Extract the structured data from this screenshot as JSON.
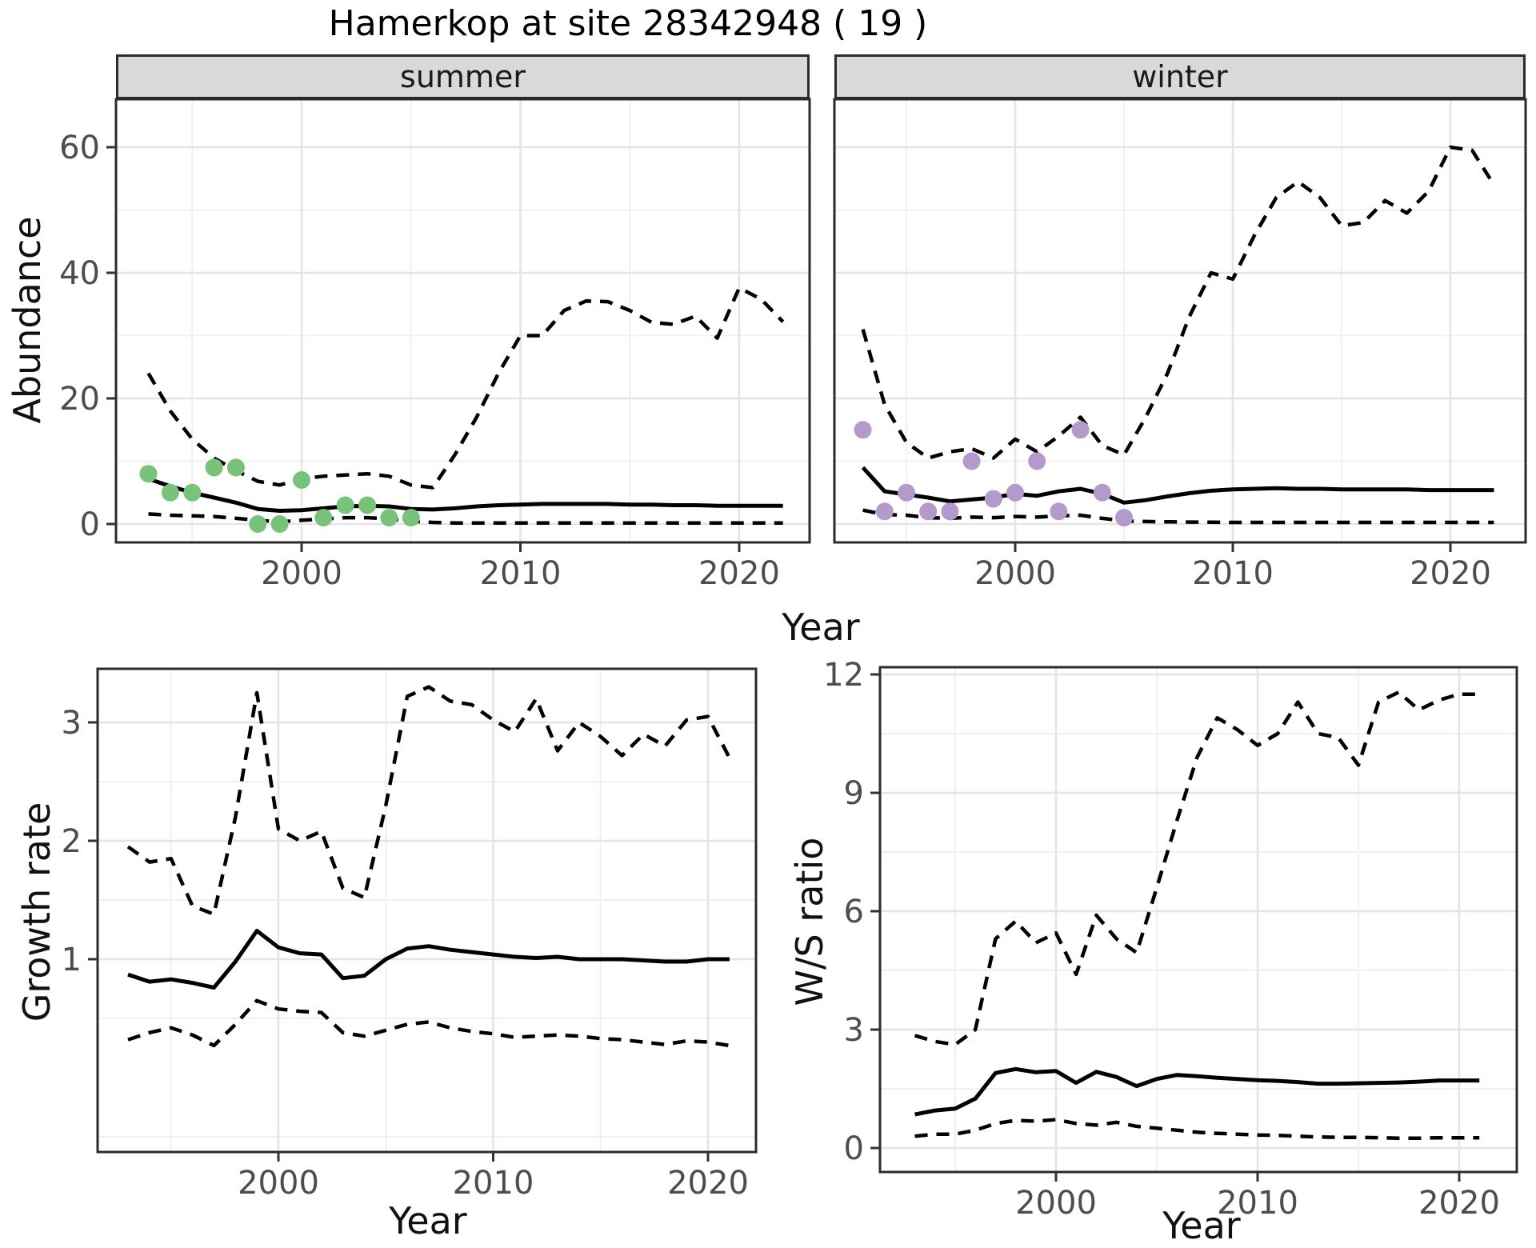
{
  "figure": {
    "title": "Hamerkop at site 28342948 ( 19 )"
  },
  "colors": {
    "summer_points": "#77c379",
    "winter_points": "#b499cb",
    "line": "#000000",
    "strip_bg": "#d9d9d9",
    "panel_border": "#2b2b2b",
    "grid_major": "#e4e4e4",
    "grid_minor": "#f0f0f0",
    "tick_label": "#4d4d4d"
  },
  "chart_data": [
    {
      "id": "abundance-summer",
      "type": "line",
      "facet": "summer",
      "xlabel": "Year",
      "ylabel": "Abundance",
      "xlim": [
        1991.5,
        2023.2
      ],
      "ylim": [
        -3,
        68
      ],
      "xticks": [
        2000,
        2010,
        2020
      ],
      "xminor": [
        1995,
        2005,
        2015
      ],
      "yticks": [
        0,
        20,
        40,
        60
      ],
      "yminor": [
        10,
        30,
        50
      ],
      "years": [
        1993,
        1994,
        1995,
        1996,
        1997,
        1998,
        1999,
        2000,
        2001,
        2002,
        2003,
        2004,
        2005,
        2006,
        2007,
        2008,
        2009,
        2010,
        2011,
        2012,
        2013,
        2014,
        2015,
        2016,
        2017,
        2018,
        2019,
        2020,
        2021,
        2022
      ],
      "series": [
        {
          "name": "median",
          "style": "solid",
          "values": [
            7.2,
            6.0,
            5.0,
            4.2,
            3.4,
            2.4,
            2.1,
            2.2,
            2.5,
            2.8,
            2.9,
            2.8,
            2.4,
            2.3,
            2.5,
            2.8,
            3.0,
            3.1,
            3.2,
            3.2,
            3.2,
            3.2,
            3.1,
            3.1,
            3.0,
            3.0,
            2.9,
            2.9,
            2.9,
            2.9
          ]
        },
        {
          "name": "upper_ci",
          "style": "dashed",
          "values": [
            24,
            18,
            13.5,
            10.5,
            8.5,
            6.8,
            6.2,
            7.2,
            7.6,
            7.8,
            8,
            7.6,
            6.2,
            5.8,
            11,
            17,
            24,
            30,
            30,
            34,
            35.5,
            35.4,
            34,
            32.1,
            31.8,
            33.1,
            29.6,
            37.6,
            35.8,
            32.2
          ]
        },
        {
          "name": "lower_ci",
          "style": "dashed",
          "values": [
            1.6,
            1.4,
            1.3,
            1.2,
            0.9,
            0.6,
            0.35,
            0.6,
            0.8,
            1.0,
            1.0,
            0.8,
            0.45,
            0.25,
            0.15,
            0.15,
            0.15,
            0.15,
            0.15,
            0.15,
            0.15,
            0.15,
            0.15,
            0.15,
            0.15,
            0.15,
            0.15,
            0.15,
            0.15,
            0.15
          ]
        }
      ],
      "points": {
        "color_key": "summer_points",
        "data": [
          [
            1993,
            8
          ],
          [
            1994,
            5
          ],
          [
            1995,
            5
          ],
          [
            1996,
            9
          ],
          [
            1997,
            9
          ],
          [
            1998,
            0
          ],
          [
            1999,
            0
          ],
          [
            2000,
            7
          ],
          [
            2001,
            1
          ],
          [
            2002,
            3
          ],
          [
            2003,
            3
          ],
          [
            2004,
            1
          ],
          [
            2005,
            1
          ]
        ]
      }
    },
    {
      "id": "abundance-winter",
      "type": "line",
      "facet": "winter",
      "xlabel": "Year",
      "ylabel": "Abundance",
      "xlim": [
        1991.7,
        2023.5
      ],
      "ylim": [
        -3,
        68
      ],
      "xticks": [
        2000,
        2010,
        2020
      ],
      "xminor": [
        1995,
        2005,
        2015
      ],
      "yticks": [
        0,
        20,
        40,
        60
      ],
      "yminor": [
        10,
        30,
        50
      ],
      "years": [
        1993,
        1994,
        1995,
        1996,
        1997,
        1998,
        1999,
        2000,
        2001,
        2002,
        2003,
        2004,
        2005,
        2006,
        2007,
        2008,
        2009,
        2010,
        2011,
        2012,
        2013,
        2014,
        2015,
        2016,
        2017,
        2018,
        2019,
        2020,
        2021,
        2022
      ],
      "series": [
        {
          "name": "median",
          "style": "solid",
          "values": [
            9.0,
            5.2,
            4.7,
            4.2,
            3.6,
            3.9,
            4.2,
            4.8,
            4.5,
            5.2,
            5.6,
            4.8,
            3.4,
            3.8,
            4.4,
            4.9,
            5.3,
            5.5,
            5.6,
            5.7,
            5.6,
            5.6,
            5.5,
            5.5,
            5.5,
            5.5,
            5.4,
            5.4,
            5.4,
            5.4
          ]
        },
        {
          "name": "upper_ci",
          "style": "dashed",
          "values": [
            31,
            19,
            13,
            10.5,
            11.5,
            12,
            10.5,
            13.5,
            11.5,
            14,
            17,
            12.5,
            11,
            17,
            24,
            33,
            40,
            39,
            46,
            52,
            54.5,
            52,
            47.5,
            48,
            51.5,
            49.5,
            53,
            60,
            59.5,
            54
          ]
        },
        {
          "name": "lower_ci",
          "style": "dashed",
          "values": [
            2.2,
            1.5,
            1.4,
            1.0,
            0.9,
            1.1,
            1.0,
            1.2,
            1.1,
            1.3,
            1.4,
            0.9,
            0.5,
            0.4,
            0.35,
            0.3,
            0.28,
            0.26,
            0.25,
            0.25,
            0.25,
            0.25,
            0.25,
            0.25,
            0.25,
            0.25,
            0.25,
            0.25,
            0.25,
            0.25
          ]
        }
      ],
      "points": {
        "color_key": "winter_points",
        "data": [
          [
            1993,
            15
          ],
          [
            1994,
            2
          ],
          [
            1995,
            5
          ],
          [
            1996,
            2
          ],
          [
            1997,
            2
          ],
          [
            1998,
            10
          ],
          [
            1999,
            4
          ],
          [
            2000,
            5
          ],
          [
            2001,
            10
          ],
          [
            2002,
            2
          ],
          [
            2003,
            15
          ],
          [
            2004,
            5
          ],
          [
            2005,
            1
          ]
        ]
      }
    },
    {
      "id": "growth-rate",
      "type": "line",
      "facet": null,
      "xlabel": "Year",
      "ylabel": "Growth rate",
      "xlim": [
        1991.6,
        2022.2
      ],
      "ylim": [
        -0.6,
        3.45
      ],
      "xticks": [
        2000,
        2010,
        2020
      ],
      "xminor": [
        1995,
        2005,
        2015
      ],
      "yticks": [
        1,
        2,
        3
      ],
      "yminor": [
        -0.5,
        0.5,
        1.5,
        2.5
      ],
      "years": [
        1993,
        1994,
        1995,
        1996,
        1997,
        1998,
        1999,
        2000,
        2001,
        2002,
        2003,
        2004,
        2005,
        2006,
        2007,
        2008,
        2009,
        2010,
        2011,
        2012,
        2013,
        2014,
        2015,
        2016,
        2017,
        2018,
        2019,
        2020,
        2021
      ],
      "series": [
        {
          "name": "median",
          "style": "solid",
          "values": [
            0.87,
            0.81,
            0.83,
            0.8,
            0.76,
            0.98,
            1.24,
            1.1,
            1.05,
            1.04,
            0.84,
            0.86,
            1.0,
            1.09,
            1.11,
            1.08,
            1.06,
            1.04,
            1.02,
            1.01,
            1.02,
            1.0,
            1.0,
            1.0,
            0.99,
            0.98,
            0.98,
            1.0,
            1.0
          ]
        },
        {
          "name": "upper_ci",
          "style": "dashed",
          "values": [
            1.95,
            1.82,
            1.85,
            1.45,
            1.38,
            2.2,
            3.25,
            2.1,
            2.0,
            2.08,
            1.6,
            1.52,
            2.3,
            3.22,
            3.3,
            3.18,
            3.15,
            3.02,
            2.92,
            3.2,
            2.76,
            3.0,
            2.88,
            2.72,
            2.9,
            2.8,
            3.02,
            3.05,
            2.7
          ]
        },
        {
          "name": "lower_ci",
          "style": "dashed",
          "values": [
            0.32,
            0.38,
            0.42,
            0.36,
            0.27,
            0.45,
            0.65,
            0.58,
            0.56,
            0.55,
            0.38,
            0.35,
            0.4,
            0.45,
            0.47,
            0.42,
            0.39,
            0.37,
            0.34,
            0.35,
            0.36,
            0.35,
            0.33,
            0.32,
            0.3,
            0.28,
            0.31,
            0.3,
            0.27
          ]
        }
      ],
      "points": null
    },
    {
      "id": "ws-ratio",
      "type": "line",
      "facet": null,
      "xlabel": "Year",
      "ylabel": "W/S ratio",
      "xlim": [
        1991.3,
        2022.9
      ],
      "ylim": [
        -0.6,
        12.2
      ],
      "xticks": [
        2000,
        2010,
        2020
      ],
      "xminor": [
        1995,
        2005,
        2015
      ],
      "yticks": [
        0,
        3,
        6,
        9,
        12
      ],
      "yminor": [
        1.5,
        4.5,
        7.5,
        10.5
      ],
      "years": [
        1993,
        1994,
        1995,
        1996,
        1997,
        1998,
        1999,
        2000,
        2001,
        2002,
        2003,
        2004,
        2005,
        2006,
        2007,
        2008,
        2009,
        2010,
        2011,
        2012,
        2013,
        2014,
        2015,
        2016,
        2017,
        2018,
        2019,
        2020,
        2021
      ],
      "series": [
        {
          "name": "median",
          "style": "solid",
          "values": [
            0.85,
            0.95,
            1.0,
            1.25,
            1.9,
            2.0,
            1.92,
            1.95,
            1.65,
            1.93,
            1.8,
            1.57,
            1.75,
            1.85,
            1.82,
            1.78,
            1.75,
            1.72,
            1.7,
            1.67,
            1.63,
            1.63,
            1.64,
            1.65,
            1.66,
            1.68,
            1.71,
            1.71,
            1.71
          ]
        },
        {
          "name": "upper_ci",
          "style": "dashed",
          "values": [
            2.85,
            2.7,
            2.62,
            3.0,
            5.3,
            5.75,
            5.2,
            5.45,
            4.4,
            5.9,
            5.3,
            4.95,
            6.6,
            8.3,
            9.9,
            10.9,
            10.6,
            10.2,
            10.5,
            11.3,
            10.5,
            10.4,
            9.7,
            11.3,
            11.55,
            11.1,
            11.35,
            11.5,
            11.5
          ]
        },
        {
          "name": "lower_ci",
          "style": "dashed",
          "values": [
            0.3,
            0.35,
            0.35,
            0.45,
            0.62,
            0.7,
            0.68,
            0.72,
            0.62,
            0.58,
            0.65,
            0.55,
            0.5,
            0.45,
            0.4,
            0.37,
            0.35,
            0.33,
            0.32,
            0.3,
            0.28,
            0.27,
            0.27,
            0.26,
            0.25,
            0.25,
            0.26,
            0.26,
            0.26
          ]
        }
      ],
      "points": null
    }
  ]
}
